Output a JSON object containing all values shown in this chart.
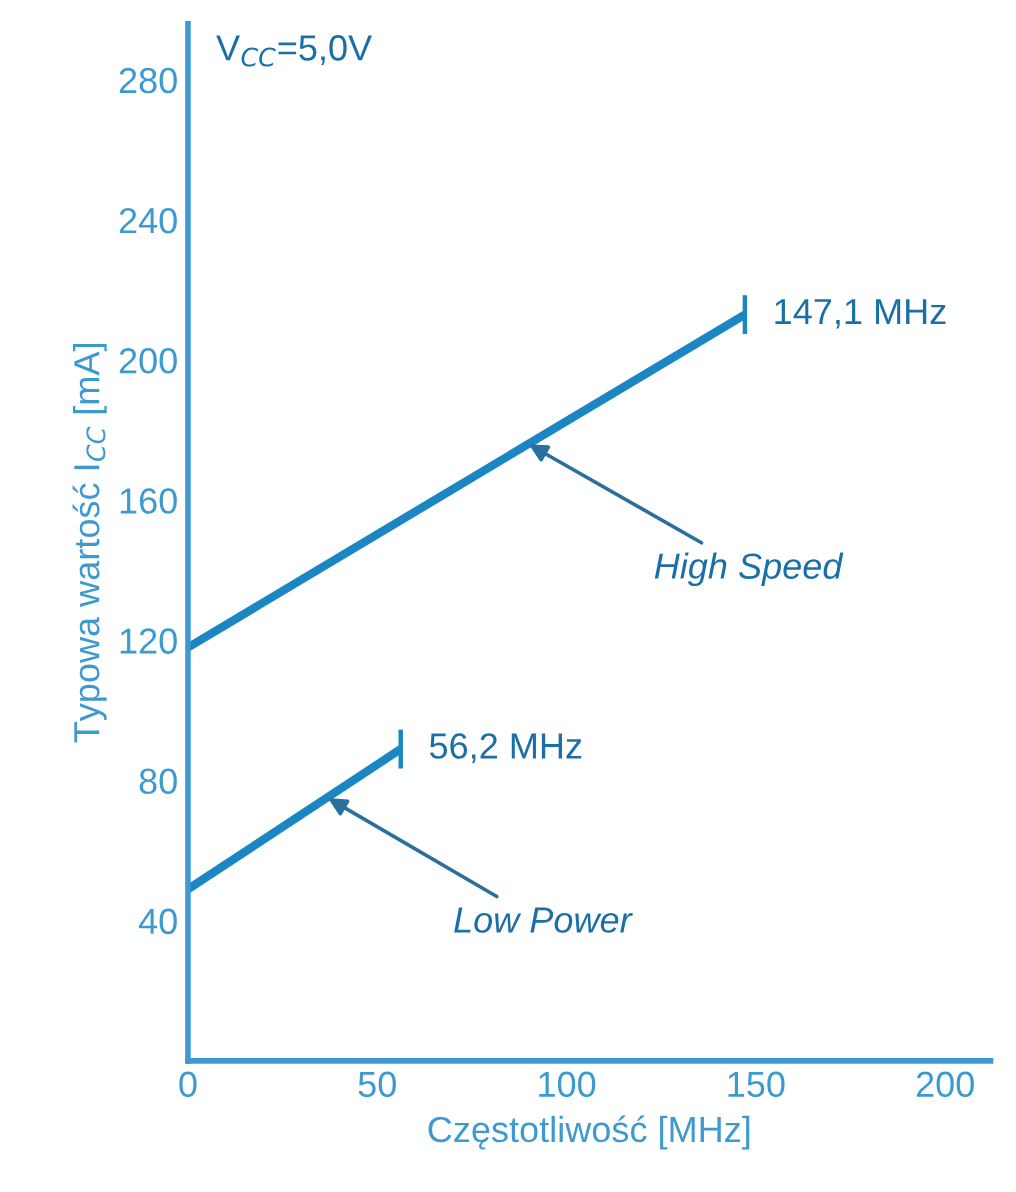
{
  "chart_data": {
    "type": "line",
    "xlabel": "Częstotliwość [MHz]",
    "ylabel": "Typowa wartość I$_{CC}$ [mA]",
    "series": [
      {
        "color": "#1a86c4",
        "x": [
          0,
          147.1
        ],
        "values": [
          118,
          213
        ]
      },
      {
        "color": "#1a86c4",
        "x": [
          0,
          56.2
        ],
        "values": [
          49,
          89
        ]
      }
    ],
    "xlim": [
      0,
      212
    ],
    "xticks": [
      0,
      50,
      100,
      150,
      200
    ],
    "ylim": [
      0,
      296
    ],
    "yticks": [
      40,
      80,
      120,
      160,
      200,
      240,
      280
    ],
    "grid": false,
    "annotations": [
      "V$_{CC}$=5,0V",
      {
        "text": "147,1 MHz",
        "x": 147.1,
        "y": 213
      },
      {
        "text": "56,2 MHz",
        "x": 56.2,
        "y": 89
      },
      {
        "text": "High Speed",
        "x": 90,
        "y": 176
      },
      {
        "text": "Low Power",
        "x": 37,
        "y": 75
      }
    ]
  }
}
